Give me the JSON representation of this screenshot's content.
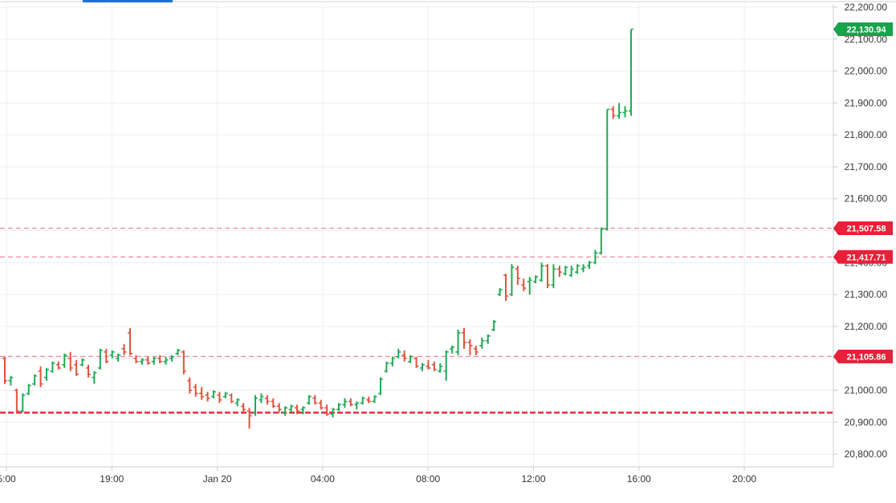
{
  "chart_data": {
    "type": "ohlc",
    "x_ticks": [
      "5:00",
      "19:00",
      "Jan 20",
      "04:00",
      "08:00",
      "12:00",
      "16:00",
      "20:00"
    ],
    "y_ticks": [
      "20,800.00",
      "20,900.00",
      "21,000.00",
      "21,100.00",
      "21,200.00",
      "21,300.00",
      "21,400.00",
      "21,500.00",
      "21,600.00",
      "21,700.00",
      "21,800.00",
      "21,900.00",
      "22,000.00",
      "22,100.00",
      "22,200.00"
    ],
    "ylim": [
      20760,
      22210
    ],
    "grid": true,
    "colors": {
      "up": "#1faa55",
      "down": "#e0533d",
      "level_line": "#f08a96",
      "support_line": "#e03040",
      "badge": "#e8203a",
      "last_badge": "#16a34a"
    },
    "levels": [
      {
        "value": 21507.58,
        "label": "21,507.58",
        "style": "dashed"
      },
      {
        "value": 21417.71,
        "label": "21,417.71",
        "style": "dashed"
      },
      {
        "value": 21105.86,
        "label": "21,105.86",
        "style": "dashed"
      },
      {
        "value": 20930,
        "label": "",
        "style": "bold-dashed"
      }
    ],
    "last_price": {
      "value": 22130.94,
      "label": "22,130.94"
    },
    "bars": [
      [
        21100,
        21105,
        21020,
        21030
      ],
      [
        21030,
        21045,
        21015,
        21040
      ],
      [
        21000,
        21005,
        20930,
        20935
      ],
      [
        20935,
        20990,
        20930,
        20985
      ],
      [
        20990,
        21020,
        20985,
        21015
      ],
      [
        21020,
        21050,
        21015,
        21045
      ],
      [
        21060,
        21075,
        21010,
        21020
      ],
      [
        21040,
        21070,
        21030,
        21065
      ],
      [
        21060,
        21090,
        21055,
        21085
      ],
      [
        21080,
        21090,
        21065,
        21070
      ],
      [
        21080,
        21115,
        21070,
        21110
      ],
      [
        21100,
        21120,
        21060,
        21070
      ],
      [
        21080,
        21095,
        21045,
        21050
      ],
      [
        21080,
        21100,
        21075,
        21095
      ],
      [
        21070,
        21080,
        21040,
        21050
      ],
      [
        21040,
        21060,
        21020,
        21055
      ],
      [
        21070,
        21130,
        21065,
        21125
      ],
      [
        21120,
        21130,
        21085,
        21090
      ],
      [
        21110,
        21125,
        21100,
        21120
      ],
      [
        21100,
        21115,
        21090,
        21110
      ],
      [
        21130,
        21145,
        21110,
        21120
      ],
      [
        21180,
        21195,
        21110,
        21115
      ],
      [
        21100,
        21110,
        21085,
        21090
      ],
      [
        21090,
        21100,
        21080,
        21095
      ],
      [
        21095,
        21105,
        21080,
        21085
      ],
      [
        21090,
        21105,
        21080,
        21100
      ],
      [
        21100,
        21110,
        21085,
        21090
      ],
      [
        21090,
        21105,
        21080,
        21095
      ],
      [
        21100,
        21110,
        21090,
        21105
      ],
      [
        21115,
        21130,
        21110,
        21125
      ],
      [
        21120,
        21125,
        21050,
        21060
      ],
      [
        21030,
        21040,
        20990,
        21000
      ],
      [
        21010,
        21020,
        20980,
        20990
      ],
      [
        20990,
        21010,
        20970,
        20980
      ],
      [
        20985,
        20995,
        20965,
        20975
      ],
      [
        20980,
        21000,
        20975,
        20995
      ],
      [
        20985,
        20995,
        20960,
        20970
      ],
      [
        20980,
        20995,
        20975,
        20990
      ],
      [
        20985,
        20990,
        20960,
        20965
      ],
      [
        20960,
        20975,
        20950,
        20970
      ],
      [
        20950,
        20960,
        20930,
        20940
      ],
      [
        20935,
        20945,
        20880,
        20920
      ],
      [
        20930,
        20985,
        20920,
        20975
      ],
      [
        20970,
        20990,
        20960,
        20980
      ],
      [
        20975,
        20985,
        20955,
        20965
      ],
      [
        20965,
        20975,
        20945,
        20950
      ],
      [
        20950,
        20960,
        20930,
        20940
      ],
      [
        20930,
        20950,
        20920,
        20945
      ],
      [
        20940,
        20955,
        20930,
        20950
      ],
      [
        20945,
        20955,
        20925,
        20935
      ],
      [
        20940,
        20950,
        20925,
        20945
      ],
      [
        20960,
        20985,
        20955,
        20980
      ],
      [
        20975,
        20985,
        20955,
        20960
      ],
      [
        20960,
        20970,
        20940,
        20945
      ],
      [
        20945,
        20955,
        20920,
        20925
      ],
      [
        20925,
        20945,
        20915,
        20940
      ],
      [
        20940,
        20960,
        20935,
        20955
      ],
      [
        20955,
        20975,
        20945,
        20965
      ],
      [
        20965,
        20975,
        20950,
        20955
      ],
      [
        20955,
        20965,
        20940,
        20960
      ],
      [
        20960,
        20980,
        20955,
        20975
      ],
      [
        20970,
        20980,
        20960,
        20965
      ],
      [
        20965,
        20985,
        20960,
        20980
      ],
      [
        20990,
        21040,
        20985,
        21035
      ],
      [
        21060,
        21090,
        21055,
        21085
      ],
      [
        21085,
        21105,
        21075,
        21100
      ],
      [
        21105,
        21130,
        21100,
        21120
      ],
      [
        21110,
        21125,
        21090,
        21100
      ],
      [
        21090,
        21110,
        21085,
        21105
      ],
      [
        21100,
        21105,
        21070,
        21075
      ],
      [
        21070,
        21085,
        21060,
        21080
      ],
      [
        21075,
        21095,
        21065,
        21070
      ],
      [
        21080,
        21090,
        21060,
        21065
      ],
      [
        21060,
        21085,
        21055,
        21075
      ],
      [
        21060,
        21125,
        21030,
        21120
      ],
      [
        21130,
        21140,
        21115,
        21135
      ],
      [
        21120,
        21190,
        21110,
        21180
      ],
      [
        21180,
        21195,
        21130,
        21150
      ],
      [
        21150,
        21160,
        21110,
        21140
      ],
      [
        21130,
        21140,
        21110,
        21120
      ],
      [
        21140,
        21165,
        21130,
        21155
      ],
      [
        21155,
        21175,
        21145,
        21170
      ],
      [
        21190,
        21220,
        21185,
        21215
      ],
      [
        21300,
        21320,
        21295,
        21315
      ],
      [
        21360,
        21365,
        21280,
        21295
      ],
      [
        21300,
        21395,
        21295,
        21385
      ],
      [
        21380,
        21390,
        21330,
        21350
      ],
      [
        21330,
        21350,
        21310,
        21320
      ],
      [
        21340,
        21355,
        21300,
        21345
      ],
      [
        21340,
        21360,
        21335,
        21355
      ],
      [
        21345,
        21400,
        21340,
        21390
      ],
      [
        21390,
        21395,
        21320,
        21330
      ],
      [
        21330,
        21395,
        21320,
        21380
      ],
      [
        21380,
        21390,
        21355,
        21370
      ],
      [
        21365,
        21390,
        21360,
        21385
      ],
      [
        21360,
        21390,
        21355,
        21380
      ],
      [
        21370,
        21395,
        21365,
        21390
      ],
      [
        21380,
        21395,
        21370,
        21385
      ],
      [
        21390,
        21405,
        21380,
        21400
      ],
      [
        21400,
        21440,
        21395,
        21430
      ],
      [
        21430,
        21510,
        21425,
        21505
      ],
      [
        21505,
        21880,
        21500,
        21880
      ],
      [
        21880,
        21890,
        21850,
        21860
      ],
      [
        21860,
        21900,
        21850,
        21870
      ],
      [
        21870,
        21890,
        21855,
        21875
      ],
      [
        21875,
        22130,
        21860,
        22130.94
      ]
    ]
  }
}
